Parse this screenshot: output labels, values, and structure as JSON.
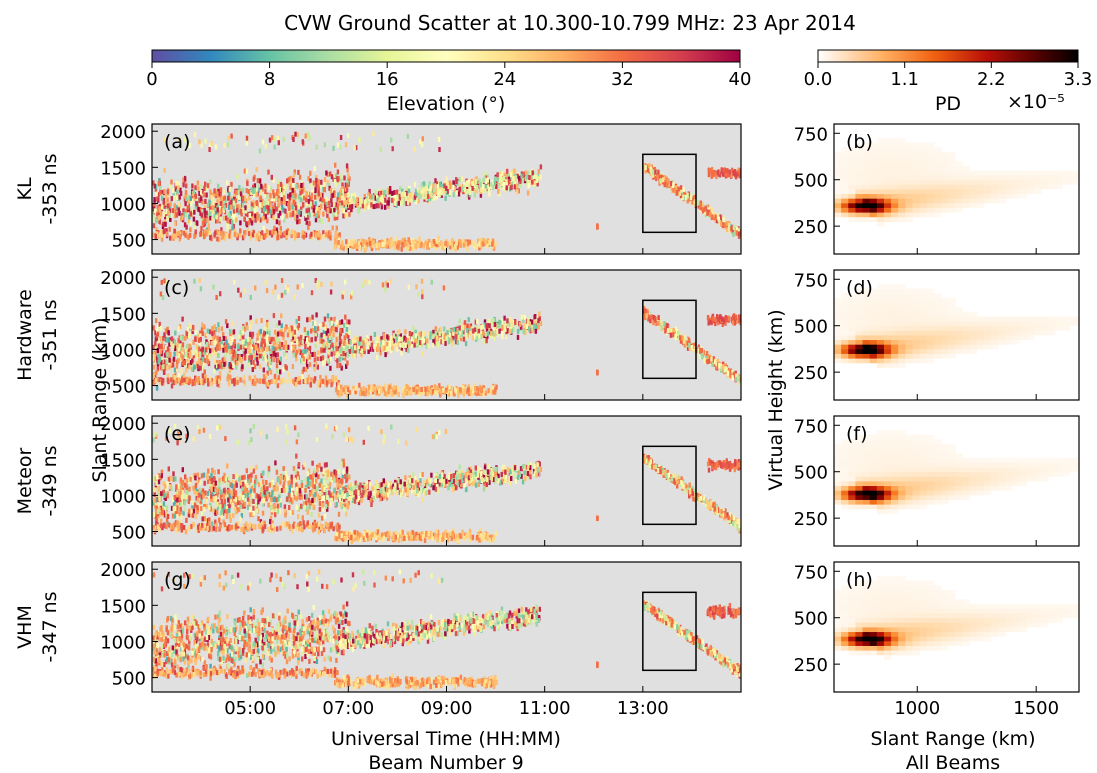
{
  "figure": {
    "title": "CVW Ground Scatter at 10.300-10.799 MHz: 23 Apr 2014"
  },
  "colorbar_elevation": {
    "label": "Elevation (°)",
    "ticks": [
      "0",
      "8",
      "16",
      "24",
      "32",
      "40"
    ],
    "range": [
      0,
      40
    ],
    "colormap": "Spectral_r"
  },
  "colorbar_pd": {
    "label": "PD",
    "ticks": [
      "0.0",
      "1.1",
      "2.2",
      "3.3"
    ],
    "range": [
      0,
      3.3
    ],
    "exponent": "×10⁻⁵",
    "colormap": "gist_heat_r"
  },
  "rows": [
    {
      "method": "KL",
      "offset": "-353 ns",
      "left_panel": "(a)",
      "right_panel": "(b)"
    },
    {
      "method": "Hardware",
      "offset": "-351 ns",
      "left_panel": "(c)",
      "right_panel": "(d)"
    },
    {
      "method": "Meteor",
      "offset": "-349 ns",
      "left_panel": "(e)",
      "right_panel": "(f)"
    },
    {
      "method": "VHM",
      "offset": "-347 ns",
      "left_panel": "(g)",
      "right_panel": "(h)"
    }
  ],
  "left_axes": {
    "ylabel": "Slant Range (km)",
    "xlabel": "Universal Time (HH:MM)",
    "xlabel2": "Beam Number 9",
    "yticks": [
      "2000",
      "1500",
      "1000",
      "500"
    ],
    "xticks": [
      "05:00",
      "07:00",
      "09:00",
      "11:00",
      "13:00"
    ]
  },
  "right_axes": {
    "ylabel": "Virtual Height (km)",
    "xlabel": "Slant Range (km)",
    "xlabel2": "All Beams",
    "yticks": [
      "750",
      "500",
      "250"
    ],
    "xticks": [
      "1000",
      "1500"
    ]
  },
  "chart_data": [
    {
      "type": "scatter",
      "title": "",
      "xlabel": "Universal Time (HH:MM)",
      "ylabel": "Slant Range (km)",
      "xlim": [
        "03:00",
        "15:00"
      ],
      "ylim": [
        300,
        2100
      ],
      "color_variable": "Elevation (°)",
      "background": "#e0e0e0",
      "highlight_box": {
        "x": [
          "13:00",
          "14:05"
        ],
        "y": [
          600,
          1680
        ]
      },
      "panels": [
        "(a)",
        "(c)",
        "(e)",
        "(g)"
      ],
      "clusters": [
        {
          "t": [
            "03:00",
            "07:00"
          ],
          "range_km": [
            600,
            1700
          ],
          "elevation_deg": "6-40"
        },
        {
          "t": [
            "06:40",
            "10:00"
          ],
          "range_km": [
            330,
            620
          ],
          "elevation_deg": "24-30"
        },
        {
          "t": [
            "07:00",
            "11:00"
          ],
          "range_km": [
            800,
            1600
          ],
          "elevation_deg": "8-40"
        },
        {
          "t": [
            "13:00",
            "15:00"
          ],
          "range_km": [
            550,
            1600
          ],
          "elevation_deg": "10-32"
        }
      ]
    },
    {
      "type": "heatmap",
      "title": "",
      "xlabel": "Slant Range (km)",
      "ylabel": "Virtual Height (km)",
      "xlim": [
        650,
        1680
      ],
      "ylim": [
        100,
        800
      ],
      "color_variable": "PD",
      "panels": [
        "(b)",
        "(d)",
        "(f)",
        "(h)"
      ],
      "peak": [
        {
          "panel": "(b)",
          "slant_range_km": 780,
          "virtual_height_km": 360
        },
        {
          "panel": "(d)",
          "slant_range_km": 780,
          "virtual_height_km": 370
        },
        {
          "panel": "(f)",
          "slant_range_km": 785,
          "virtual_height_km": 380
        },
        {
          "panel": "(h)",
          "slant_range_km": 790,
          "virtual_height_km": 385
        }
      ]
    }
  ]
}
